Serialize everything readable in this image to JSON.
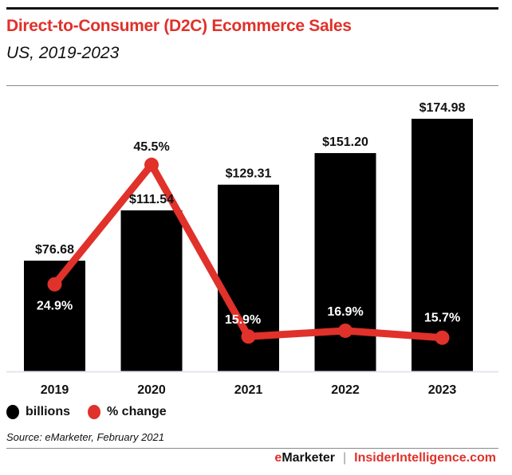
{
  "header": {
    "title": "Direct-to-Consumer (D2C) Ecommerce Sales",
    "subtitle": "US, 2019-2023"
  },
  "legend": {
    "items": [
      {
        "label": "billions",
        "color": "#000000"
      },
      {
        "label": "% change",
        "color": "#e0312a"
      }
    ]
  },
  "source": "Source: eMarketer, February 2021",
  "footer": {
    "brand_e": "e",
    "brand_rest": "Marketer",
    "separator": "|",
    "site": "InsiderIntelligence.com"
  },
  "colors": {
    "accent": "#e0312a",
    "bars": "#000000",
    "baseline": "#e4e6ee"
  },
  "chart_data": {
    "type": "bar",
    "title": "Direct-to-Consumer (D2C) Ecommerce Sales",
    "subtitle": "US, 2019-2023",
    "xlabel": "",
    "ylabel": "",
    "categories": [
      "2019",
      "2020",
      "2021",
      "2022",
      "2023"
    ],
    "series": [
      {
        "name": "billions",
        "type": "bar",
        "values": [
          76.68,
          111.54,
          129.31,
          151.2,
          174.98
        ],
        "labels": [
          "$76.68",
          "$111.54",
          "$129.31",
          "$151.20",
          "$174.98"
        ],
        "color": "#000000"
      },
      {
        "name": "% change",
        "type": "line",
        "values": [
          24.9,
          45.5,
          15.9,
          16.9,
          15.7
        ],
        "labels": [
          "24.9%",
          "45.5%",
          "15.9%",
          "16.9%",
          "15.7%"
        ],
        "color": "#e0312a"
      }
    ],
    "grid": false,
    "legend_position": "bottom-left"
  }
}
